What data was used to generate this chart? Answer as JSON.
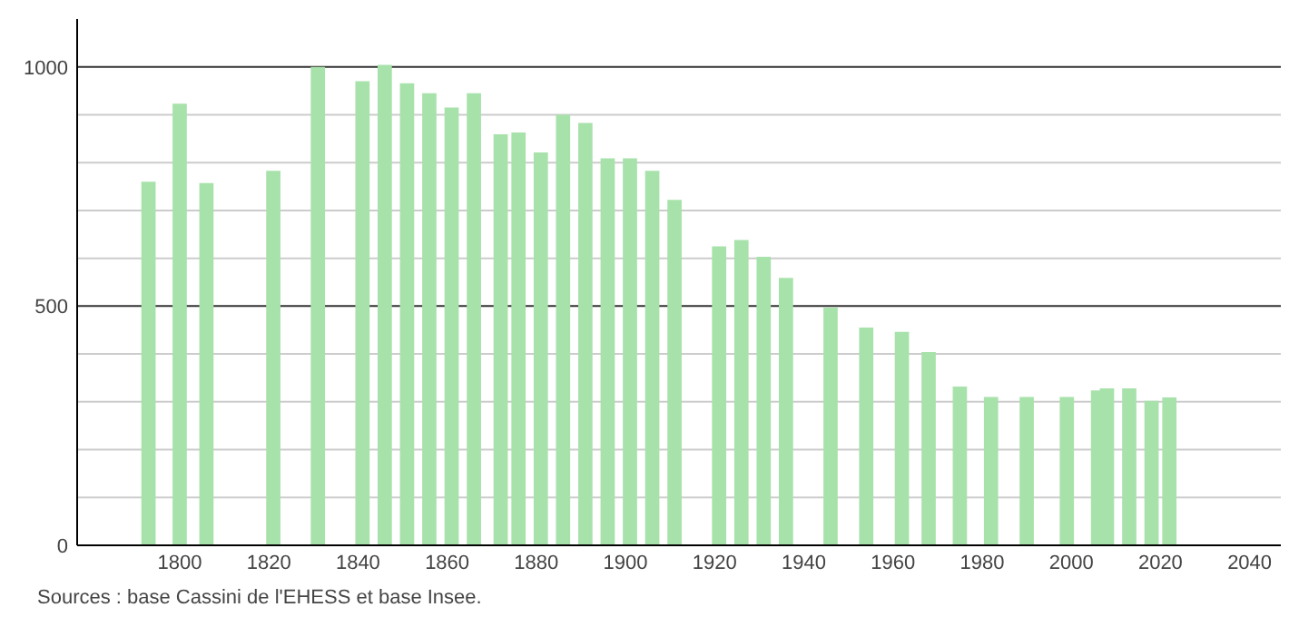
{
  "chart_data": {
    "type": "bar",
    "x": [
      1793,
      1800,
      1806,
      1821,
      1831,
      1841,
      1846,
      1851,
      1856,
      1861,
      1866,
      1872,
      1876,
      1881,
      1886,
      1891,
      1896,
      1901,
      1906,
      1911,
      1921,
      1926,
      1931,
      1936,
      1946,
      1954,
      1962,
      1968,
      1975,
      1982,
      1990,
      1999,
      2006,
      2008,
      2013,
      2018,
      2022
    ],
    "values": [
      760,
      923,
      757,
      783,
      1000,
      970,
      1004,
      966,
      945,
      915,
      945,
      859,
      863,
      821,
      900,
      883,
      809,
      809,
      783,
      722,
      625,
      638,
      603,
      559,
      497,
      455,
      446,
      404,
      332,
      310,
      310,
      310,
      324,
      328,
      328,
      302,
      309
    ],
    "color": "#a8e2ab",
    "xlim": [
      1777,
      2047
    ],
    "xticks": [
      1800,
      1820,
      1840,
      1860,
      1880,
      1900,
      1920,
      1940,
      1960,
      1980,
      2000,
      2020,
      2040
    ],
    "ylim": [
      0,
      1100
    ],
    "yticks": [
      0,
      {
        "value": 100,
        "label": null
      },
      {
        "value": 200,
        "label": null
      },
      {
        "value": 300,
        "label": null
      },
      {
        "value": 400,
        "label": null
      },
      500,
      {
        "value": 600,
        "label": null
      },
      {
        "value": 700,
        "label": null
      },
      {
        "value": 800,
        "label": null
      },
      {
        "value": 900,
        "label": null
      },
      1000
    ],
    "grid": "y",
    "annotations": [
      "Sources : base Cassini de l'EHESS et base Insee."
    ]
  }
}
